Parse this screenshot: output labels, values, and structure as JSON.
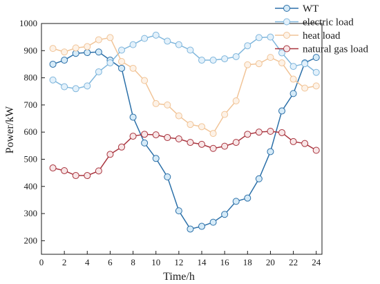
{
  "chart_data": {
    "type": "line",
    "title": "",
    "xlabel": "Time/h",
    "ylabel": "Power/kW",
    "x": [
      1,
      2,
      3,
      4,
      5,
      6,
      7,
      8,
      9,
      10,
      11,
      12,
      13,
      14,
      15,
      16,
      17,
      18,
      19,
      20,
      21,
      22,
      23,
      24
    ],
    "xticks": [
      0,
      2,
      4,
      6,
      8,
      10,
      12,
      14,
      16,
      18,
      20,
      22,
      24
    ],
    "xlim": [
      0,
      24.5
    ],
    "yticks": [
      200,
      300,
      400,
      500,
      600,
      700,
      800,
      900,
      1000
    ],
    "ylim": [
      150,
      1000
    ],
    "grid": false,
    "legend_position": "top-right",
    "series": [
      {
        "name": "WT",
        "color": "#2a6fa8",
        "marker_fill": "#d6ebf8",
        "values": [
          850,
          865,
          890,
          893,
          895,
          865,
          835,
          655,
          560,
          503,
          435,
          310,
          243,
          253,
          268,
          297,
          345,
          357,
          428,
          528,
          678,
          742,
          855,
          875
        ]
      },
      {
        "name": "electric load",
        "color": "#7fb6dc",
        "marker_fill": "#e3f1fb",
        "values": [
          792,
          767,
          760,
          770,
          822,
          855,
          902,
          922,
          945,
          957,
          935,
          922,
          902,
          865,
          865,
          870,
          878,
          918,
          948,
          950,
          892,
          842,
          852,
          820
        ]
      },
      {
        "name": "heat load",
        "color": "#f1c497",
        "marker_fill": "#fdf2e7",
        "values": [
          908,
          895,
          910,
          915,
          940,
          948,
          860,
          835,
          790,
          705,
          700,
          660,
          628,
          620,
          595,
          665,
          715,
          848,
          852,
          875,
          855,
          795,
          762,
          770
        ]
      },
      {
        "name": "natural gas load",
        "color": "#a8323c",
        "marker_fill": "#f8e6e7",
        "values": [
          468,
          458,
          440,
          440,
          457,
          518,
          545,
          585,
          592,
          590,
          580,
          575,
          562,
          555,
          540,
          548,
          562,
          592,
          600,
          603,
          598,
          565,
          558,
          533
        ]
      }
    ]
  }
}
